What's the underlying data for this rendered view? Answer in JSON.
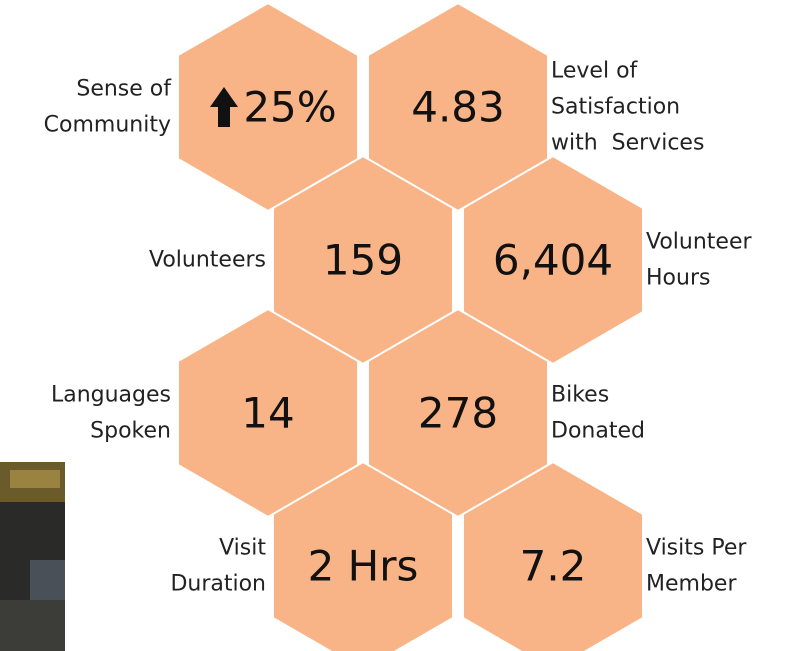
{
  "hexes": [
    {
      "value": "25%",
      "label": [
        "Sense of",
        "Community"
      ]
    },
    {
      "value": "4.83",
      "label": [
        "Level of",
        "Satisfaction",
        "with  Services"
      ]
    },
    {
      "value": "159",
      "label": [
        "Volunteers"
      ]
    },
    {
      "value": "6,404",
      "label": [
        "Volunteer",
        "Hours"
      ]
    },
    {
      "value": "14",
      "label": [
        "Languages",
        "Spoken"
      ]
    },
    {
      "value": "278",
      "label": [
        "Bikes",
        "Donated"
      ]
    },
    {
      "value": "2 Hrs",
      "label": [
        "Visit",
        "Duration"
      ]
    },
    {
      "value": "7.2",
      "label": [
        "Visits Per",
        "Member"
      ]
    }
  ]
}
